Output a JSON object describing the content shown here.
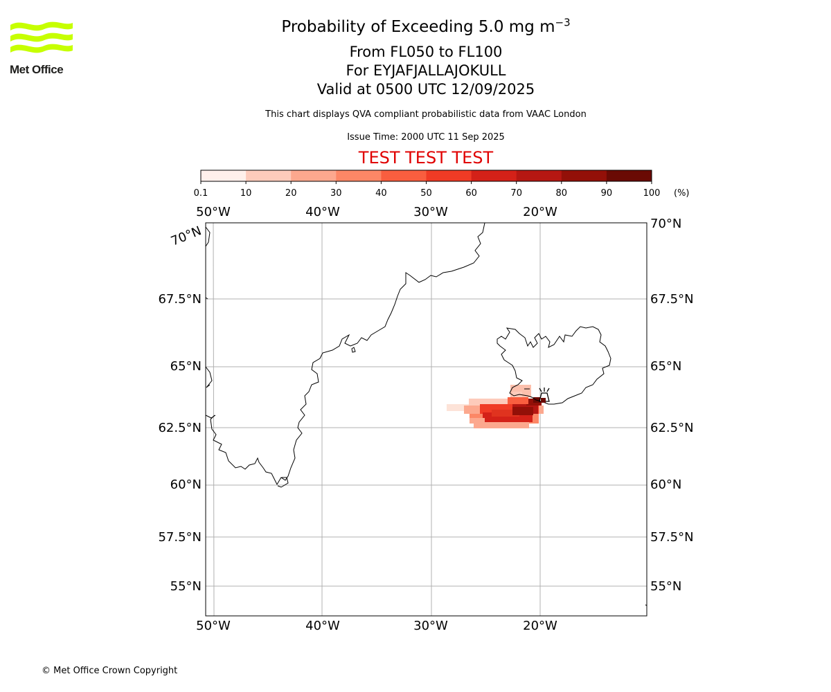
{
  "logo": {
    "text": "Met Office",
    "color": "#c6ff00"
  },
  "title": {
    "line1_prefix": "Probability of Exceeding 5.0 mg m",
    "line1_exp": "−3",
    "line2": "From FL050 to FL100",
    "line3": "For EYJAFJALLAJOKULL",
    "line4": "Valid at 0500 UTC 12/09/2025"
  },
  "subtitle": "This chart displays QVA compliant probabilistic data from VAAC London",
  "issue_time": "Issue Time: 2000 UTC 11 Sep 2025",
  "test_banner": "TEST TEST TEST",
  "colorbar": {
    "ticks": [
      "0.1",
      "10",
      "20",
      "30",
      "40",
      "50",
      "60",
      "70",
      "80",
      "90",
      "100"
    ],
    "unit": "(%)",
    "colors": [
      "#fff0eb",
      "#fdcbbb",
      "#fca88e",
      "#fc8766",
      "#f95e3f",
      "#f03b25",
      "#d42118",
      "#b51712",
      "#931008",
      "#6a0a04"
    ]
  },
  "map": {
    "lon_labels": [
      "50°W",
      "40°W",
      "30°W",
      "20°W"
    ],
    "lat_labels_left": [
      "70°N",
      "67.5°N",
      "65°N",
      "62.5°N",
      "60°N",
      "57.5°N",
      "55°N"
    ],
    "lat_labels_right": [
      "70°N",
      "67.5°N",
      "65°N",
      "62.5°N",
      "60°N",
      "57.5°N",
      "55°N"
    ],
    "grid_color": "#b0b0b0",
    "volcano": "EYJAFJALLAJOKULL",
    "volcano_icon": "volcano-icon"
  },
  "copyright": "© Met Office Crown Copyright"
}
